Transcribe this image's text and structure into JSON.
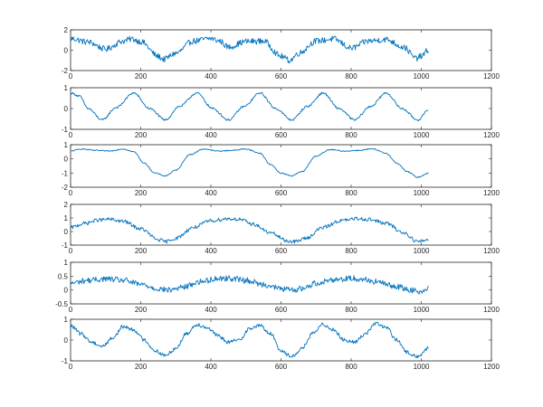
{
  "chart_data": [
    {
      "type": "line",
      "xlim": [
        0,
        1200
      ],
      "ylim": [
        -2,
        2
      ],
      "xticks": [
        0,
        200,
        400,
        600,
        800,
        1000,
        1200
      ],
      "yticks": [
        -2,
        0,
        2
      ],
      "xtick_labels": [
        "0",
        "200",
        "400",
        "600",
        "800",
        "1000",
        "1200"
      ],
      "ytick_labels": [
        "-2",
        "0",
        "2"
      ],
      "grid": false,
      "line_color": "#0072bd",
      "series": [
        {
          "x": [
            0,
            50,
            100,
            150,
            175,
            200,
            250,
            265,
            300,
            350,
            400,
            425,
            450,
            500,
            550,
            600,
            625,
            650,
            700,
            750,
            800,
            850,
            900,
            950,
            985,
            1000,
            1020
          ],
          "y": [
            1.15,
            0.8,
            0.1,
            0.9,
            1.1,
            0.85,
            -0.6,
            -0.9,
            -0.3,
            0.9,
            1.15,
            0.9,
            0.3,
            0.85,
            0.9,
            -0.6,
            -1.0,
            -0.3,
            0.9,
            1.1,
            0.2,
            0.9,
            1.05,
            0.3,
            -0.8,
            -0.6,
            0.0
          ]
        }
      ]
    },
    {
      "type": "line",
      "xlim": [
        0,
        1200
      ],
      "ylim": [
        -1,
        1
      ],
      "xticks": [
        0,
        200,
        400,
        600,
        800,
        1000,
        1200
      ],
      "yticks": [
        -1,
        0,
        1
      ],
      "xtick_labels": [
        "0",
        "200",
        "400",
        "600",
        "800",
        "1000",
        "1200"
      ],
      "ytick_labels": [
        "-1",
        "0",
        "1"
      ],
      "grid": false,
      "line_color": "#0072bd",
      "series": [
        {
          "x": [
            0,
            25,
            50,
            90,
            130,
            180,
            225,
            270,
            310,
            360,
            405,
            450,
            495,
            540,
            585,
            630,
            675,
            720,
            765,
            810,
            855,
            900,
            945,
            990,
            1020
          ],
          "y": [
            0.75,
            0.6,
            0.0,
            -0.55,
            0.05,
            0.75,
            0.0,
            -0.55,
            0.1,
            0.75,
            0.0,
            -0.55,
            0.1,
            0.75,
            0.0,
            -0.55,
            0.1,
            0.75,
            0.0,
            -0.55,
            0.1,
            0.75,
            0.0,
            -0.55,
            -0.1
          ]
        }
      ]
    },
    {
      "type": "line",
      "xlim": [
        0,
        1200
      ],
      "ylim": [
        -2,
        1
      ],
      "xticks": [
        0,
        200,
        400,
        600,
        800,
        1000,
        1200
      ],
      "yticks": [
        -2,
        -1,
        0,
        1
      ],
      "xtick_labels": [
        "0",
        "200",
        "400",
        "600",
        "800",
        "1000",
        "1200"
      ],
      "ytick_labels": [
        "-2",
        "-1",
        "0",
        "1"
      ],
      "grid": false,
      "line_color": "#0072bd",
      "series": [
        {
          "x": [
            0,
            30,
            70,
            110,
            150,
            180,
            210,
            240,
            270,
            300,
            340,
            380,
            420,
            460,
            500,
            540,
            570,
            600,
            630,
            660,
            700,
            740,
            780,
            820,
            860,
            900,
            930,
            960,
            990,
            1020
          ],
          "y": [
            0.55,
            0.7,
            0.6,
            0.55,
            0.7,
            0.5,
            -0.3,
            -1.0,
            -1.2,
            -0.8,
            0.3,
            0.7,
            0.55,
            0.6,
            0.7,
            0.4,
            -0.4,
            -1.0,
            -1.2,
            -0.9,
            0.2,
            0.65,
            0.55,
            0.6,
            0.7,
            0.4,
            -0.3,
            -0.9,
            -1.3,
            -1.0
          ]
        }
      ]
    },
    {
      "type": "line",
      "xlim": [
        0,
        1200
      ],
      "ylim": [
        -1,
        2
      ],
      "xticks": [
        0,
        200,
        400,
        600,
        800,
        1000,
        1200
      ],
      "yticks": [
        -1,
        0,
        1,
        2
      ],
      "xtick_labels": [
        "0",
        "200",
        "400",
        "600",
        "800",
        "1000",
        "1200"
      ],
      "ytick_labels": [
        "-1",
        "0",
        "1",
        "2"
      ],
      "grid": false,
      "line_color": "#0072bd",
      "series": [
        {
          "x": [
            0,
            40,
            80,
            110,
            150,
            200,
            250,
            270,
            300,
            350,
            400,
            450,
            480,
            520,
            570,
            620,
            640,
            670,
            720,
            770,
            820,
            850,
            900,
            950,
            990,
            1020
          ],
          "y": [
            0.3,
            0.6,
            0.85,
            0.9,
            0.75,
            0.2,
            -0.6,
            -0.75,
            -0.5,
            0.3,
            0.8,
            0.95,
            0.9,
            0.55,
            -0.1,
            -0.7,
            -0.75,
            -0.5,
            0.3,
            0.8,
            0.95,
            0.9,
            0.6,
            -0.1,
            -0.75,
            -0.6
          ]
        }
      ]
    },
    {
      "type": "line",
      "xlim": [
        0,
        1200
      ],
      "ylim": [
        -0.5,
        1
      ],
      "xticks": [
        0,
        200,
        400,
        600,
        800,
        1000,
        1200
      ],
      "yticks": [
        -0.5,
        0,
        0.5,
        1
      ],
      "xtick_labels": [
        "0",
        "200",
        "400",
        "600",
        "800",
        "1000",
        "1200"
      ],
      "ytick_labels": [
        "-0.5",
        "0",
        "0.5",
        "1"
      ],
      "grid": false,
      "line_color": "#0072bd",
      "series": [
        {
          "x": [
            0,
            50,
            100,
            150,
            200,
            250,
            280,
            320,
            370,
            420,
            460,
            500,
            550,
            600,
            630,
            660,
            700,
            750,
            800,
            830,
            870,
            920,
            970,
            1000,
            1020
          ],
          "y": [
            0.25,
            0.35,
            0.4,
            0.35,
            0.2,
            0.05,
            0.0,
            0.1,
            0.3,
            0.42,
            0.42,
            0.35,
            0.2,
            0.05,
            0.0,
            0.05,
            0.25,
            0.38,
            0.42,
            0.4,
            0.3,
            0.15,
            0.0,
            -0.05,
            0.05
          ]
        }
      ]
    },
    {
      "type": "line",
      "xlim": [
        0,
        1200
      ],
      "ylim": [
        -1,
        1
      ],
      "xticks": [
        0,
        200,
        400,
        600,
        800,
        1000,
        1200
      ],
      "yticks": [
        -1,
        0,
        1
      ],
      "xtick_labels": [
        "0",
        "200",
        "400",
        "600",
        "800",
        "1000",
        "1200"
      ],
      "ytick_labels": [
        "-1",
        "0",
        "1"
      ],
      "grid": false,
      "line_color": "#0072bd",
      "series": [
        {
          "x": [
            0,
            30,
            60,
            90,
            120,
            150,
            180,
            210,
            240,
            270,
            300,
            330,
            360,
            390,
            420,
            450,
            480,
            510,
            540,
            570,
            600,
            630,
            660,
            690,
            720,
            750,
            780,
            810,
            840,
            870,
            900,
            930,
            960,
            990,
            1020
          ],
          "y": [
            0.7,
            0.3,
            -0.1,
            -0.3,
            0.1,
            0.65,
            0.5,
            0.0,
            -0.5,
            -0.75,
            -0.4,
            0.3,
            0.75,
            0.6,
            0.2,
            -0.1,
            0.0,
            0.55,
            0.7,
            0.3,
            -0.5,
            -0.8,
            -0.4,
            0.3,
            0.75,
            0.5,
            0.0,
            -0.1,
            0.3,
            0.8,
            0.6,
            0.0,
            -0.6,
            -0.8,
            -0.4
          ]
        }
      ]
    }
  ]
}
